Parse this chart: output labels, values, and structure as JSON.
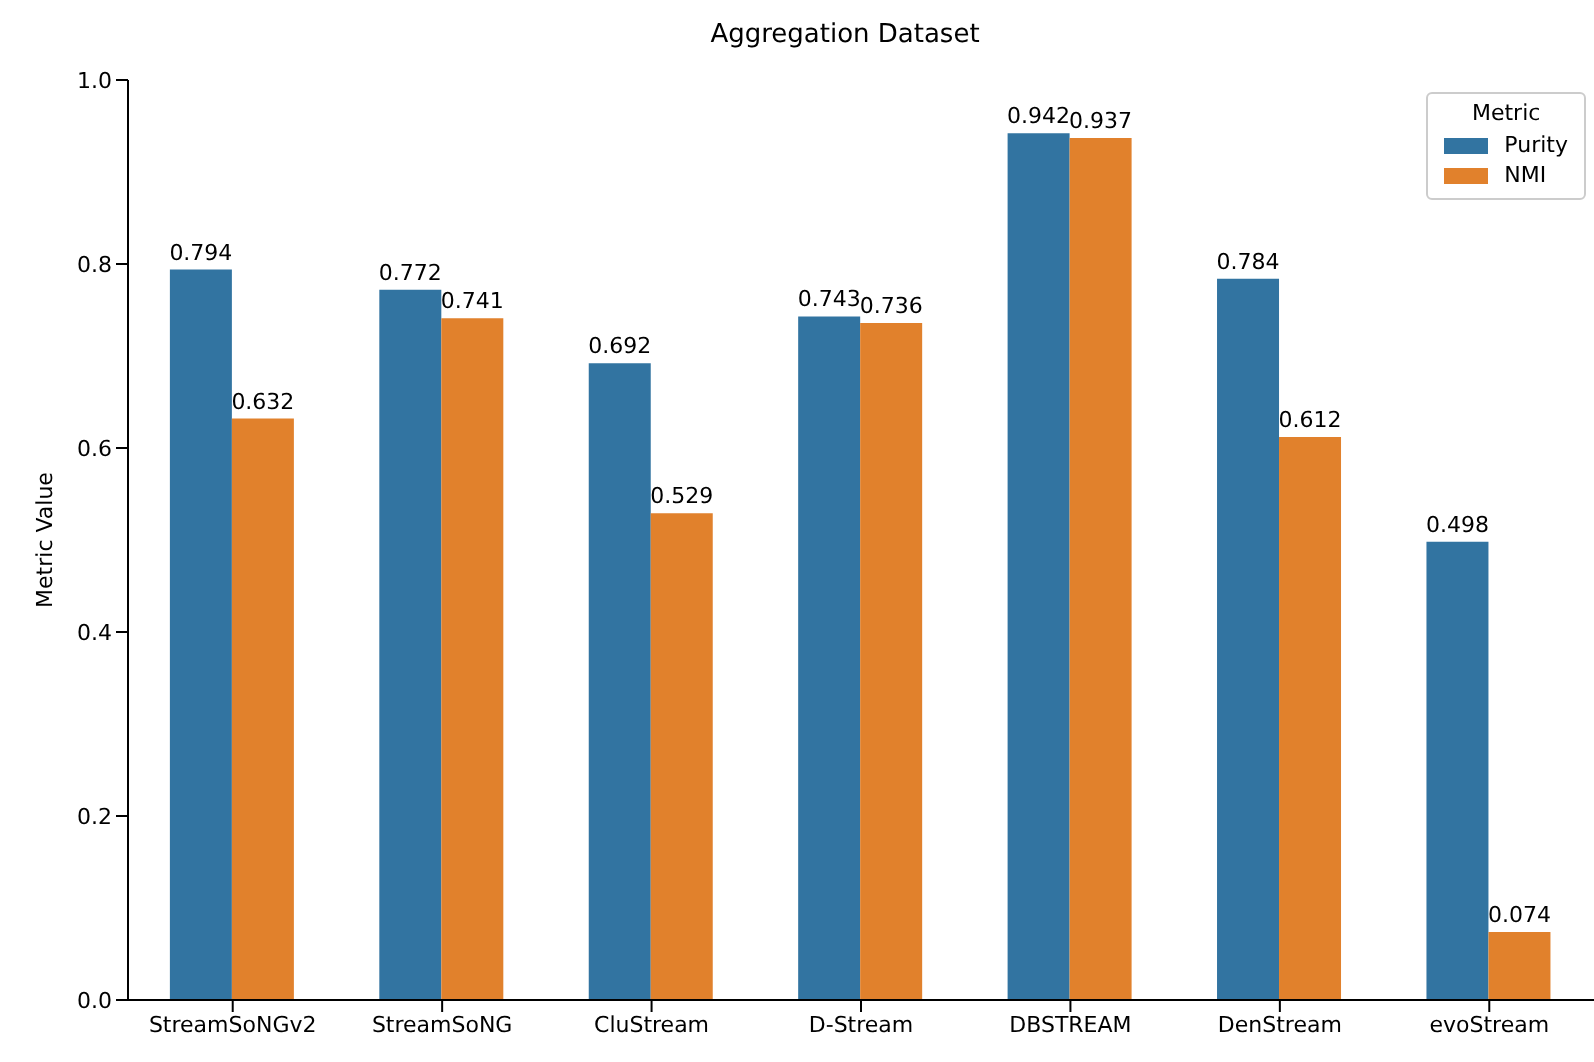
{
  "chart_data": {
    "type": "bar",
    "title": "Aggregation Dataset",
    "ylabel": "Metric Value",
    "legend_title": "Metric",
    "categories": [
      "StreamSoNGv2",
      "StreamSoNG",
      "CluStream",
      "D-Stream",
      "DBSTREAM",
      "DenStream",
      "evoStream"
    ],
    "series": [
      {
        "name": "Purity",
        "color": "#3274a1",
        "values": [
          0.794,
          0.772,
          0.692,
          0.743,
          0.942,
          0.784,
          0.498
        ]
      },
      {
        "name": "NMI",
        "color": "#e1812c",
        "values": [
          0.632,
          0.741,
          0.529,
          0.736,
          0.937,
          0.612,
          0.074
        ]
      }
    ],
    "ylim": [
      0,
      1
    ],
    "yticks": [
      {
        "value": 0,
        "label": "0.0"
      },
      {
        "value": 0.2,
        "label": "0.2"
      },
      {
        "value": 0.4,
        "label": "0.4"
      },
      {
        "value": 0.6,
        "label": "0.6"
      },
      {
        "value": 0.8,
        "label": "0.8"
      },
      {
        "value": 1,
        "label": "1.0"
      }
    ],
    "data_labels": true,
    "legend": "top right",
    "grid": false
  }
}
